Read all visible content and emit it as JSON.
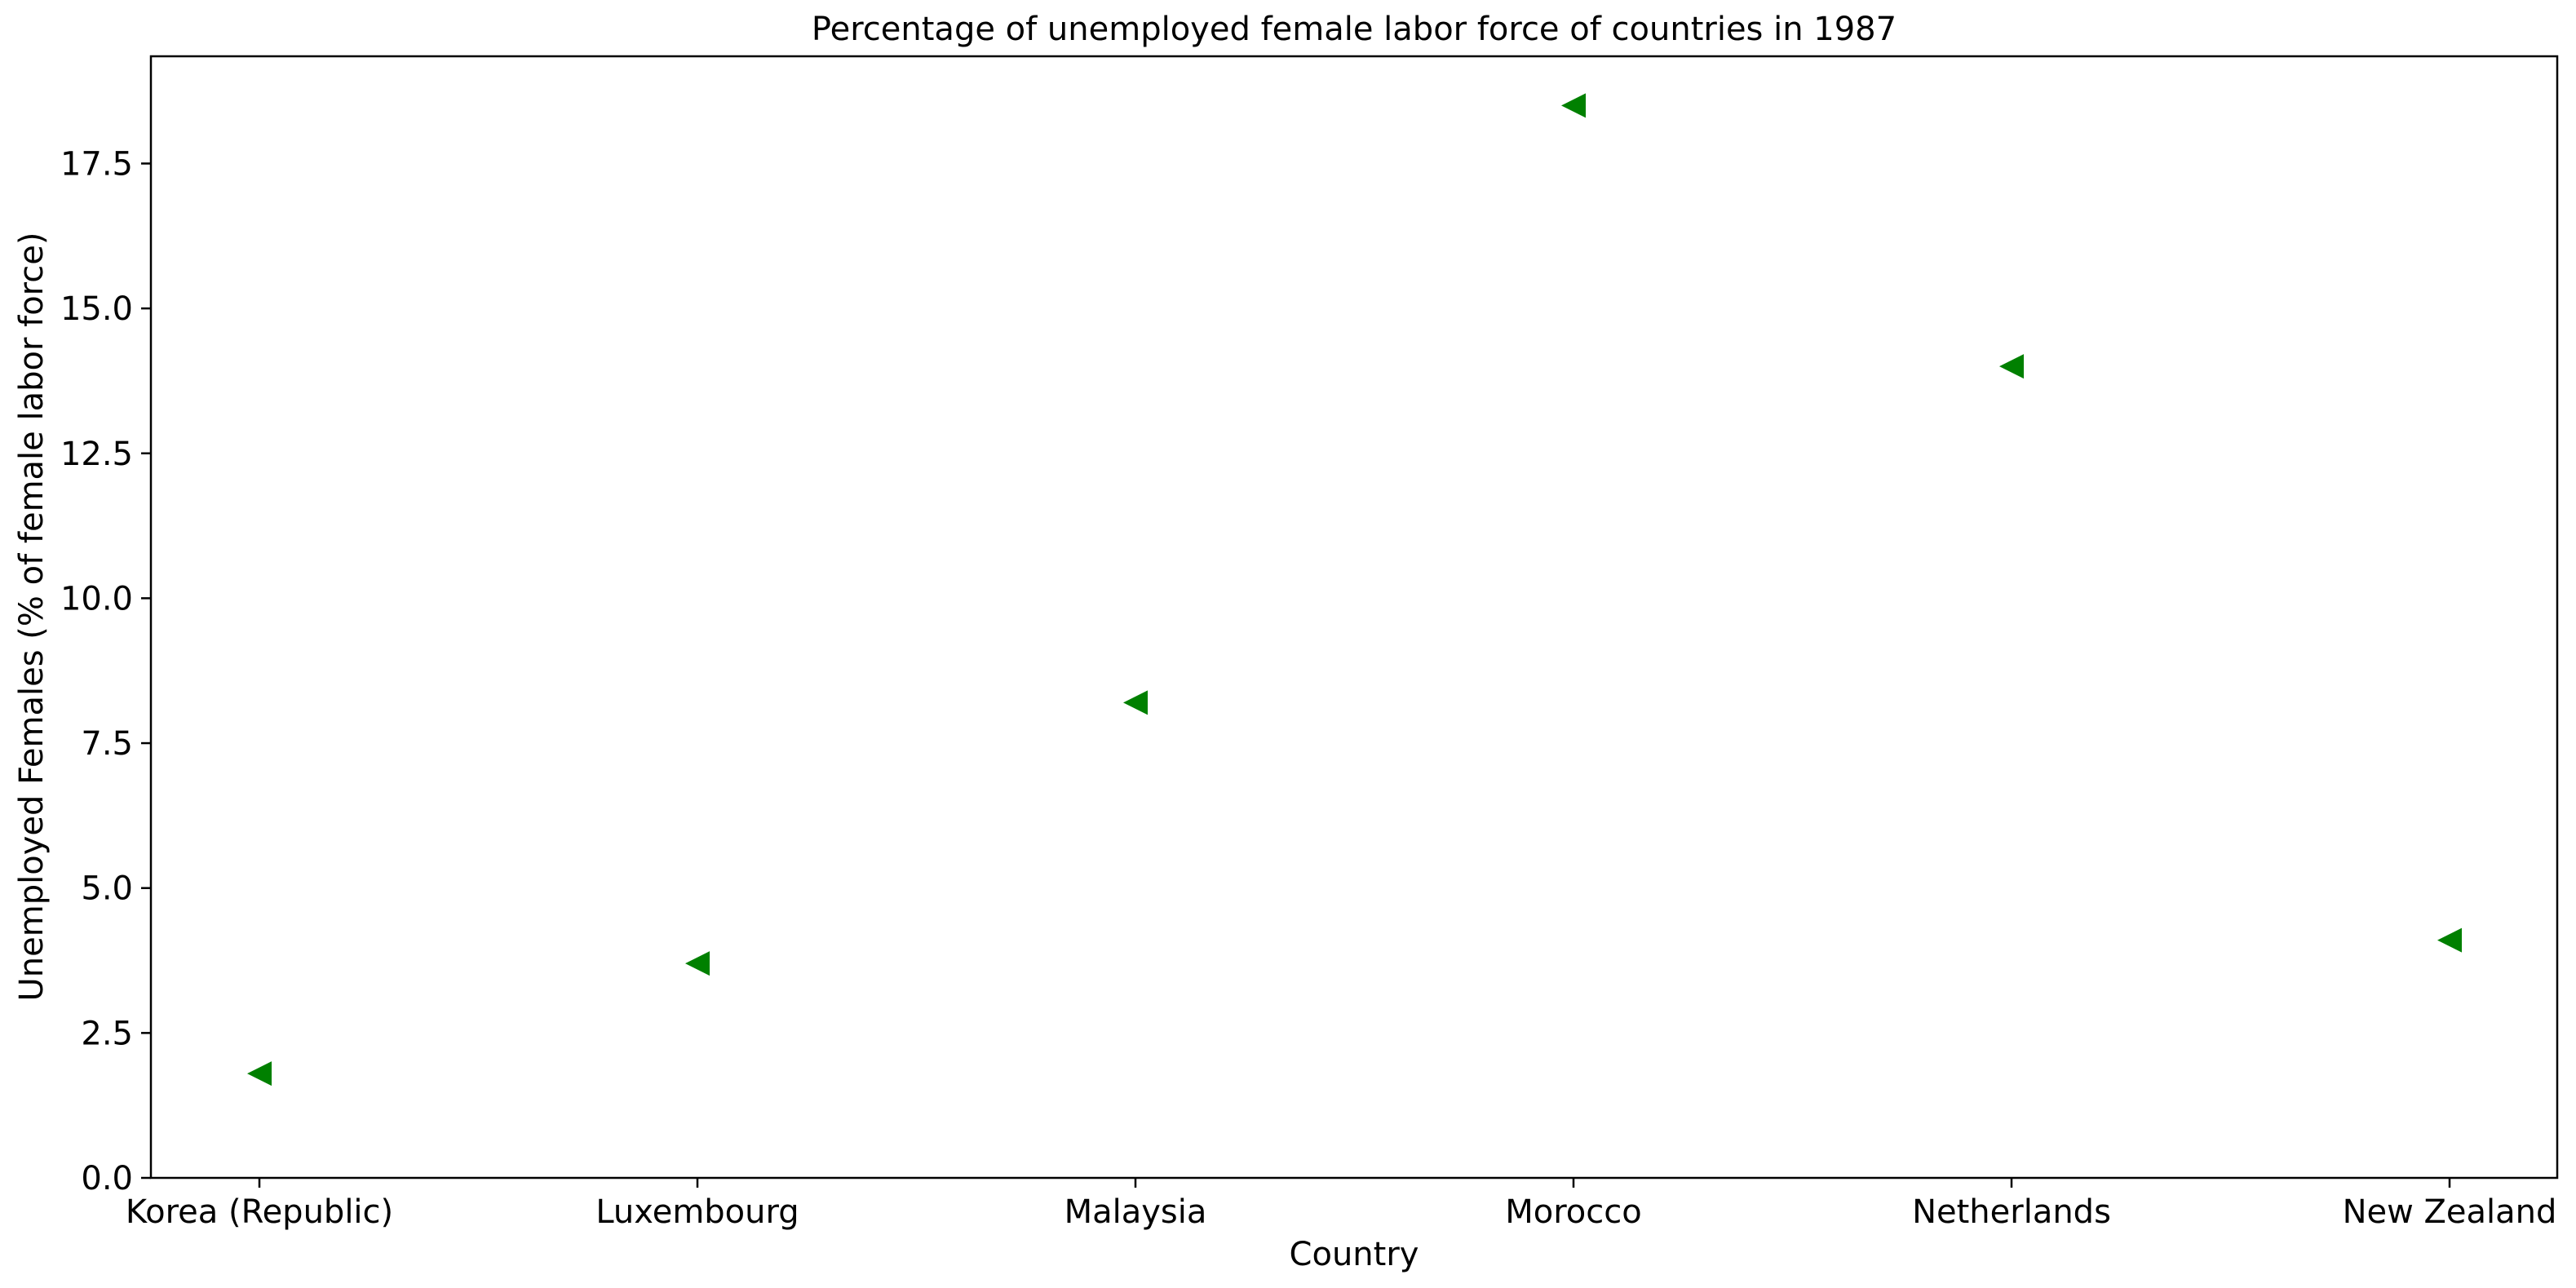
{
  "chart_data": {
    "type": "scatter",
    "title": "Percentage of unemployed female labor force of countries in 1987",
    "xlabel": "Country",
    "ylabel": "Unemployed Females (% of female labor force)",
    "categories": [
      "Korea (Republic)",
      "Luxembourg",
      "Malaysia",
      "Morocco",
      "Netherlands",
      "New Zealand"
    ],
    "series": [
      {
        "values": [
          1.8,
          3.7,
          8.2,
          18.5,
          14.0,
          4.1
        ],
        "color": "#008000",
        "marker": "triangle-left"
      }
    ],
    "ylim": [
      0,
      19.35
    ],
    "yticks": [
      "0.0",
      "2.5",
      "5.0",
      "7.5",
      "10.0",
      "12.5",
      "15.0",
      "17.5"
    ],
    "grid": false,
    "legend": "none"
  }
}
